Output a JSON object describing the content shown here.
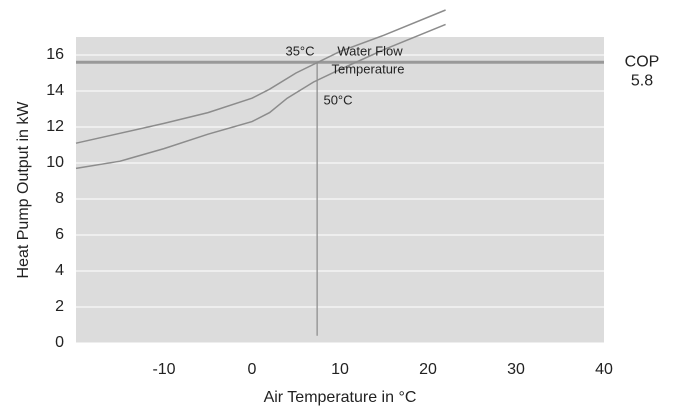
{
  "chart_data": {
    "type": "line",
    "x_label": "Air Temperature in °C",
    "y_label": "Heat Pump Output in kW",
    "xlim": [
      -20,
      40
    ],
    "xticks": [
      -10,
      0,
      10,
      20,
      30,
      40
    ],
    "ylim": [
      0,
      17
    ],
    "yticks": [
      0,
      2,
      4,
      6,
      8,
      10,
      12,
      14,
      16
    ],
    "background": "#dcdcdc",
    "series": [
      {
        "name": "35°C",
        "color": "#8c8c8c",
        "x": [
          -20,
          -10,
          -5,
          0,
          2,
          5,
          10,
          15,
          22
        ],
        "values": [
          11.1,
          12.2,
          12.8,
          13.6,
          14.1,
          15.0,
          16.2,
          17.1,
          18.5
        ]
      },
      {
        "name": "50°C",
        "color": "#8c8c8c",
        "x": [
          -20,
          -15,
          -10,
          -5,
          0,
          2,
          4,
          7,
          10,
          15,
          22
        ],
        "values": [
          9.7,
          10.1,
          10.8,
          11.6,
          12.3,
          12.8,
          13.6,
          14.5,
          15.2,
          16.3,
          17.7
        ]
      }
    ],
    "annotations": [
      "Water Flow",
      "Temperature"
    ],
    "reference_line": {
      "y": 15.6,
      "label": "COP",
      "value": 5.8,
      "color": "#999999"
    },
    "vertical_line": {
      "x": 7.4,
      "y_from": 0.4,
      "y_to": 15.6,
      "color": "#888888"
    }
  }
}
